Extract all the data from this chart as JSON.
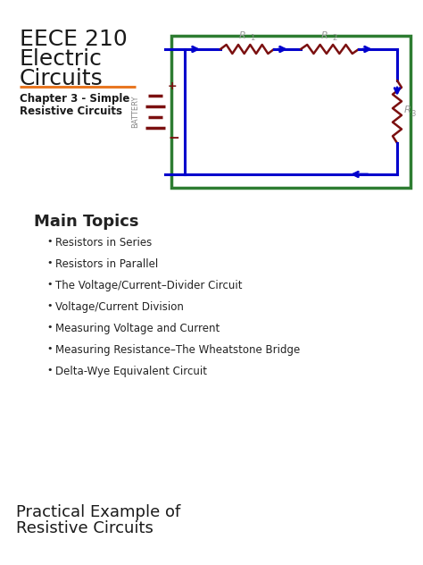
{
  "title_line1": "EECE 210",
  "title_line2": "Electric",
  "title_line3": "Circuits",
  "subtitle_line1": "Chapter 3 - Simple",
  "subtitle_line2": "Resistive Circuits",
  "section_title": "Main Topics",
  "bullets": [
    "Resistors in Series",
    "Resistors in Parallel",
    "The Voltage/Current–Divider Circuit",
    "Voltage/Current Division",
    "Measuring Voltage and Current",
    "Measuring Resistance–The Wheatstone Bridge",
    "Delta-Wye Equivalent Circuit"
  ],
  "footer_line1": "Practical Example of",
  "footer_line2": "Resistive Circuits",
  "bg_color": "#ffffff",
  "title_color": "#1a1a1a",
  "subtitle_color": "#1a1a1a",
  "orange_line_color": "#e87722",
  "section_color": "#222222",
  "bullet_color": "#222222",
  "footer_color": "#1a1a1a",
  "circuit_border_color": "#2e7d32",
  "circuit_wire_color": "#0000cc",
  "resistor_color": "#7B1010",
  "battery_color": "#7B1010",
  "label_color": "#999999",
  "battery_text_color": "#888888"
}
